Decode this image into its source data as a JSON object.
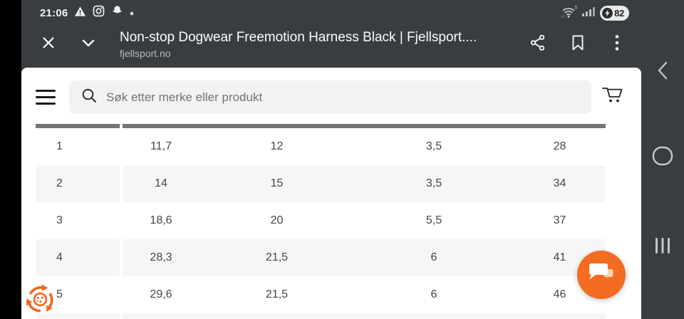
{
  "status_bar": {
    "time": "21:06",
    "wifi_speed_label": "5",
    "battery_percent": "82",
    "left_icon_names": [
      "warning-icon",
      "instagram-icon",
      "snapchat-icon",
      "notification-dot"
    ],
    "right_icon_names": [
      "wifi-icon",
      "signal-bars-icon",
      "battery-saver-icon"
    ]
  },
  "browser": {
    "title": "Non-stop Dogwear Freemotion Harness Black | Fjellsport....",
    "domain": "fjellsport.no"
  },
  "webpage": {
    "search_placeholder": "Søk etter merke eller produkt",
    "size_table": {
      "rows": [
        [
          "1",
          "11,7",
          "12",
          "3,5",
          "28"
        ],
        [
          "2",
          "14",
          "15",
          "3,5",
          "34"
        ],
        [
          "3",
          "18,6",
          "20",
          "5,5",
          "37"
        ],
        [
          "4",
          "28,3",
          "21,5",
          "6",
          "41"
        ],
        [
          "5",
          "29,6",
          "21,5",
          "6",
          "46"
        ]
      ]
    }
  },
  "colors": {
    "accent_orange": "#f36c21",
    "chrome_dark": "#3a3d40",
    "row_stripe": "#f6f6f7",
    "table_bar": "#757575",
    "search_bg": "#f2f2f3"
  }
}
